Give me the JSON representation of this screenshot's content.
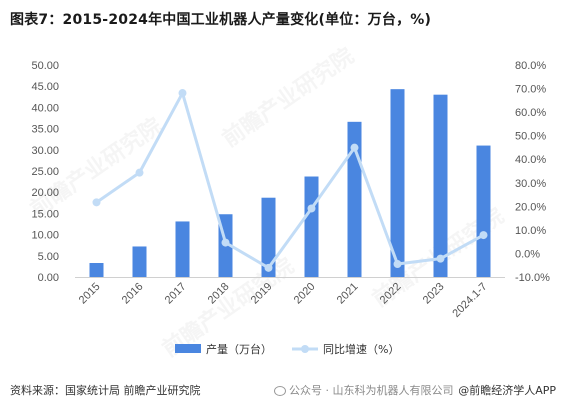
{
  "title": "图表7：2015-2024年中国工业机器人产量变化(单位：万台，%)",
  "source": "资料来源：国家统计局 前瞻产业研究院",
  "wechat_text": "公众号 · 山东科为机器人有限公司",
  "brand_text": "@前瞻经济学人APP",
  "watermark_text": "前瞻产业研究院",
  "colors": {
    "bar": "#4a86e0",
    "line": "#c2dcf6",
    "axis_text": "#555555",
    "baseline": "#d0d0d0"
  },
  "chart_data": {
    "type": "bar",
    "categories": [
      "2015",
      "2016",
      "2017",
      "2018",
      "2019",
      "2020",
      "2021",
      "2022",
      "2023",
      "2024.1-7"
    ],
    "series": [
      {
        "name": "产量（万台）",
        "type": "bar",
        "axis": "left",
        "values": [
          3.3,
          7.2,
          13.1,
          14.8,
          18.7,
          23.7,
          36.6,
          44.3,
          43.0,
          31.0
        ]
      },
      {
        "name": "同比增速（%）",
        "type": "line",
        "axis": "right",
        "values": [
          21.7,
          34.3,
          68.1,
          4.6,
          -6.1,
          19.1,
          44.9,
          -4.5,
          -2.2,
          7.8
        ]
      }
    ],
    "y_left": {
      "min": 0,
      "max": 50,
      "ticks": [
        "0.00",
        "5.00",
        "10.00",
        "15.00",
        "20.00",
        "25.00",
        "30.00",
        "35.00",
        "40.00",
        "45.00",
        "50.00"
      ]
    },
    "y_right": {
      "min": -10,
      "max": 80,
      "ticks": [
        "-10.0%",
        "0.0%",
        "10.0%",
        "20.0%",
        "30.0%",
        "40.0%",
        "50.0%",
        "60.0%",
        "70.0%",
        "80.0%"
      ]
    },
    "legend_position": "bottom",
    "grid": false
  }
}
